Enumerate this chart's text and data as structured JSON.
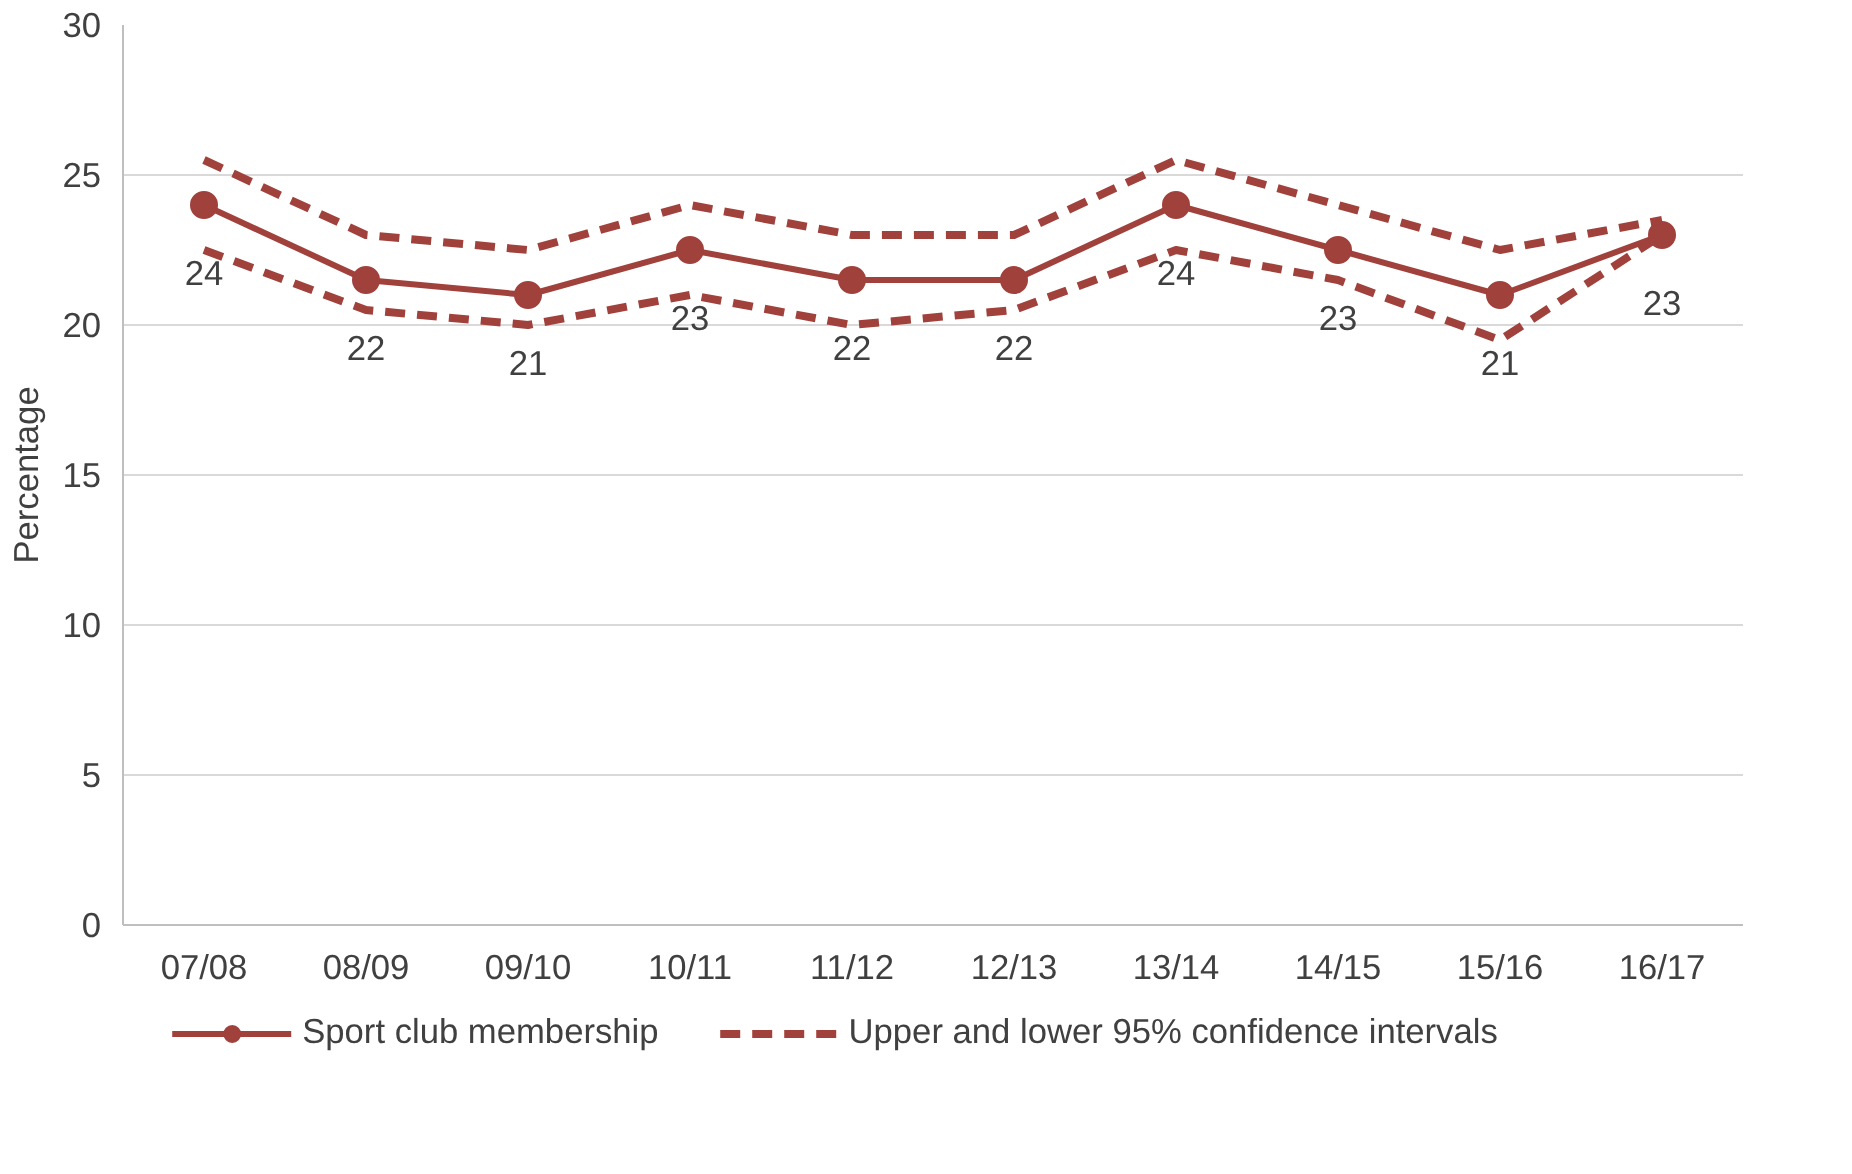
{
  "chart_data": {
    "type": "line",
    "ylabel": "Percentage",
    "categories": [
      "07/08",
      "08/09",
      "09/10",
      "10/11",
      "11/12",
      "12/13",
      "13/14",
      "14/15",
      "15/16",
      "16/17"
    ],
    "series": [
      {
        "name": "Sport club membership",
        "color": "#a0413c",
        "marker": "circle",
        "line_style": "solid",
        "values": [
          24,
          21.5,
          21,
          22.5,
          21.5,
          21.5,
          24,
          22.5,
          21,
          23
        ],
        "value_labels": [
          "24",
          "22",
          "21",
          "23",
          "22",
          "22",
          "24",
          "23",
          "21",
          "23"
        ]
      },
      {
        "name": "Upper and lower 95% confidence intervals",
        "color": "#a0413c",
        "marker": "none",
        "line_style": "dashed",
        "values": [
          25.5,
          23,
          22.5,
          24,
          23,
          23,
          25.5,
          24,
          22.5,
          23.5
        ]
      },
      {
        "color": "#a0413c",
        "marker": "none",
        "line_style": "dashed",
        "values": [
          22.5,
          20.5,
          20,
          21,
          20,
          20.5,
          22.5,
          21.5,
          19.5,
          23
        ]
      }
    ],
    "ylim": [
      0,
      30
    ],
    "yticks": [
      0,
      5,
      10,
      15,
      20,
      25,
      30
    ],
    "grid": "y",
    "legend": "bottom"
  }
}
